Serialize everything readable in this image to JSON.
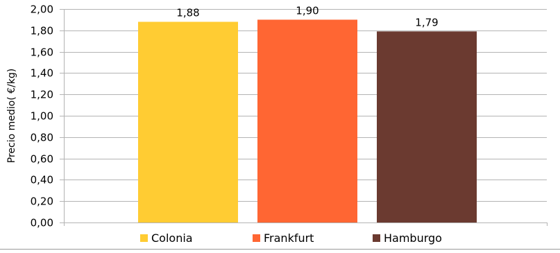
{
  "chart_data": {
    "type": "bar",
    "title": "",
    "xlabel": "",
    "ylabel": "Precio medio( €/kg)",
    "ylim": [
      0,
      2
    ],
    "ytick_step": 0.2,
    "yticks": [
      "0,00",
      "0,20",
      "0,40",
      "0,60",
      "0,80",
      "1,00",
      "1,20",
      "1,40",
      "1,60",
      "1,80",
      "2,00"
    ],
    "grid": true,
    "legend_position": "bottom",
    "series": [
      {
        "name": "Colonia",
        "values": [
          1.88
        ],
        "label": "1,88",
        "color": "#FFCC33"
      },
      {
        "name": "Frankfurt",
        "values": [
          1.9
        ],
        "label": "1,90",
        "color": "#FF6633"
      },
      {
        "name": "Hamburgo",
        "values": [
          1.79
        ],
        "label": "1,79",
        "color": "#6B3A30"
      }
    ]
  },
  "colors": {
    "grid": "#b3b3b3",
    "axis": "#b3b3b3",
    "bottom_border": "#999999"
  }
}
